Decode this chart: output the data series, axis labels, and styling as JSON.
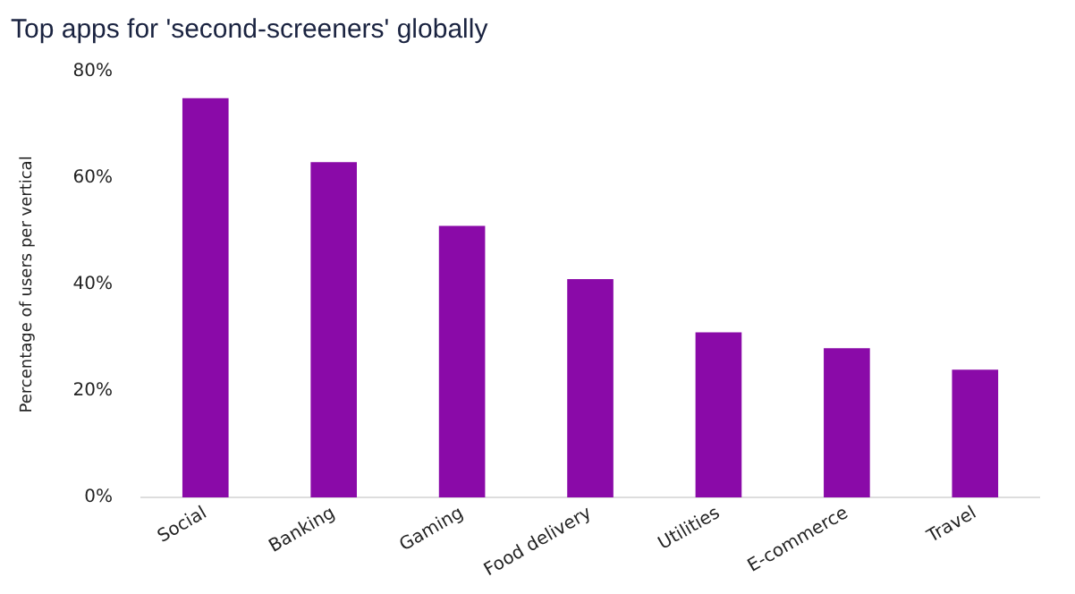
{
  "chart_data": {
    "type": "bar",
    "title": "Top apps for 'second-screeners' globally",
    "ylabel": "Percentage of users per vertical",
    "categories": [
      "Social",
      "Banking",
      "Gaming",
      "Food delivery",
      "Utilities",
      "E-commerce",
      "Travel"
    ],
    "values": [
      75,
      63,
      51,
      41,
      31,
      28,
      24
    ],
    "color": "#8a0aa8",
    "ylim": [
      0,
      80
    ],
    "yticks": [
      {
        "value": 0,
        "label": "0%"
      },
      {
        "value": 20,
        "label": "20%"
      },
      {
        "value": 40,
        "label": "40%"
      },
      {
        "value": 60,
        "label": "60%"
      },
      {
        "value": 80,
        "label": "80%"
      }
    ],
    "grid": false,
    "legend": false
  }
}
